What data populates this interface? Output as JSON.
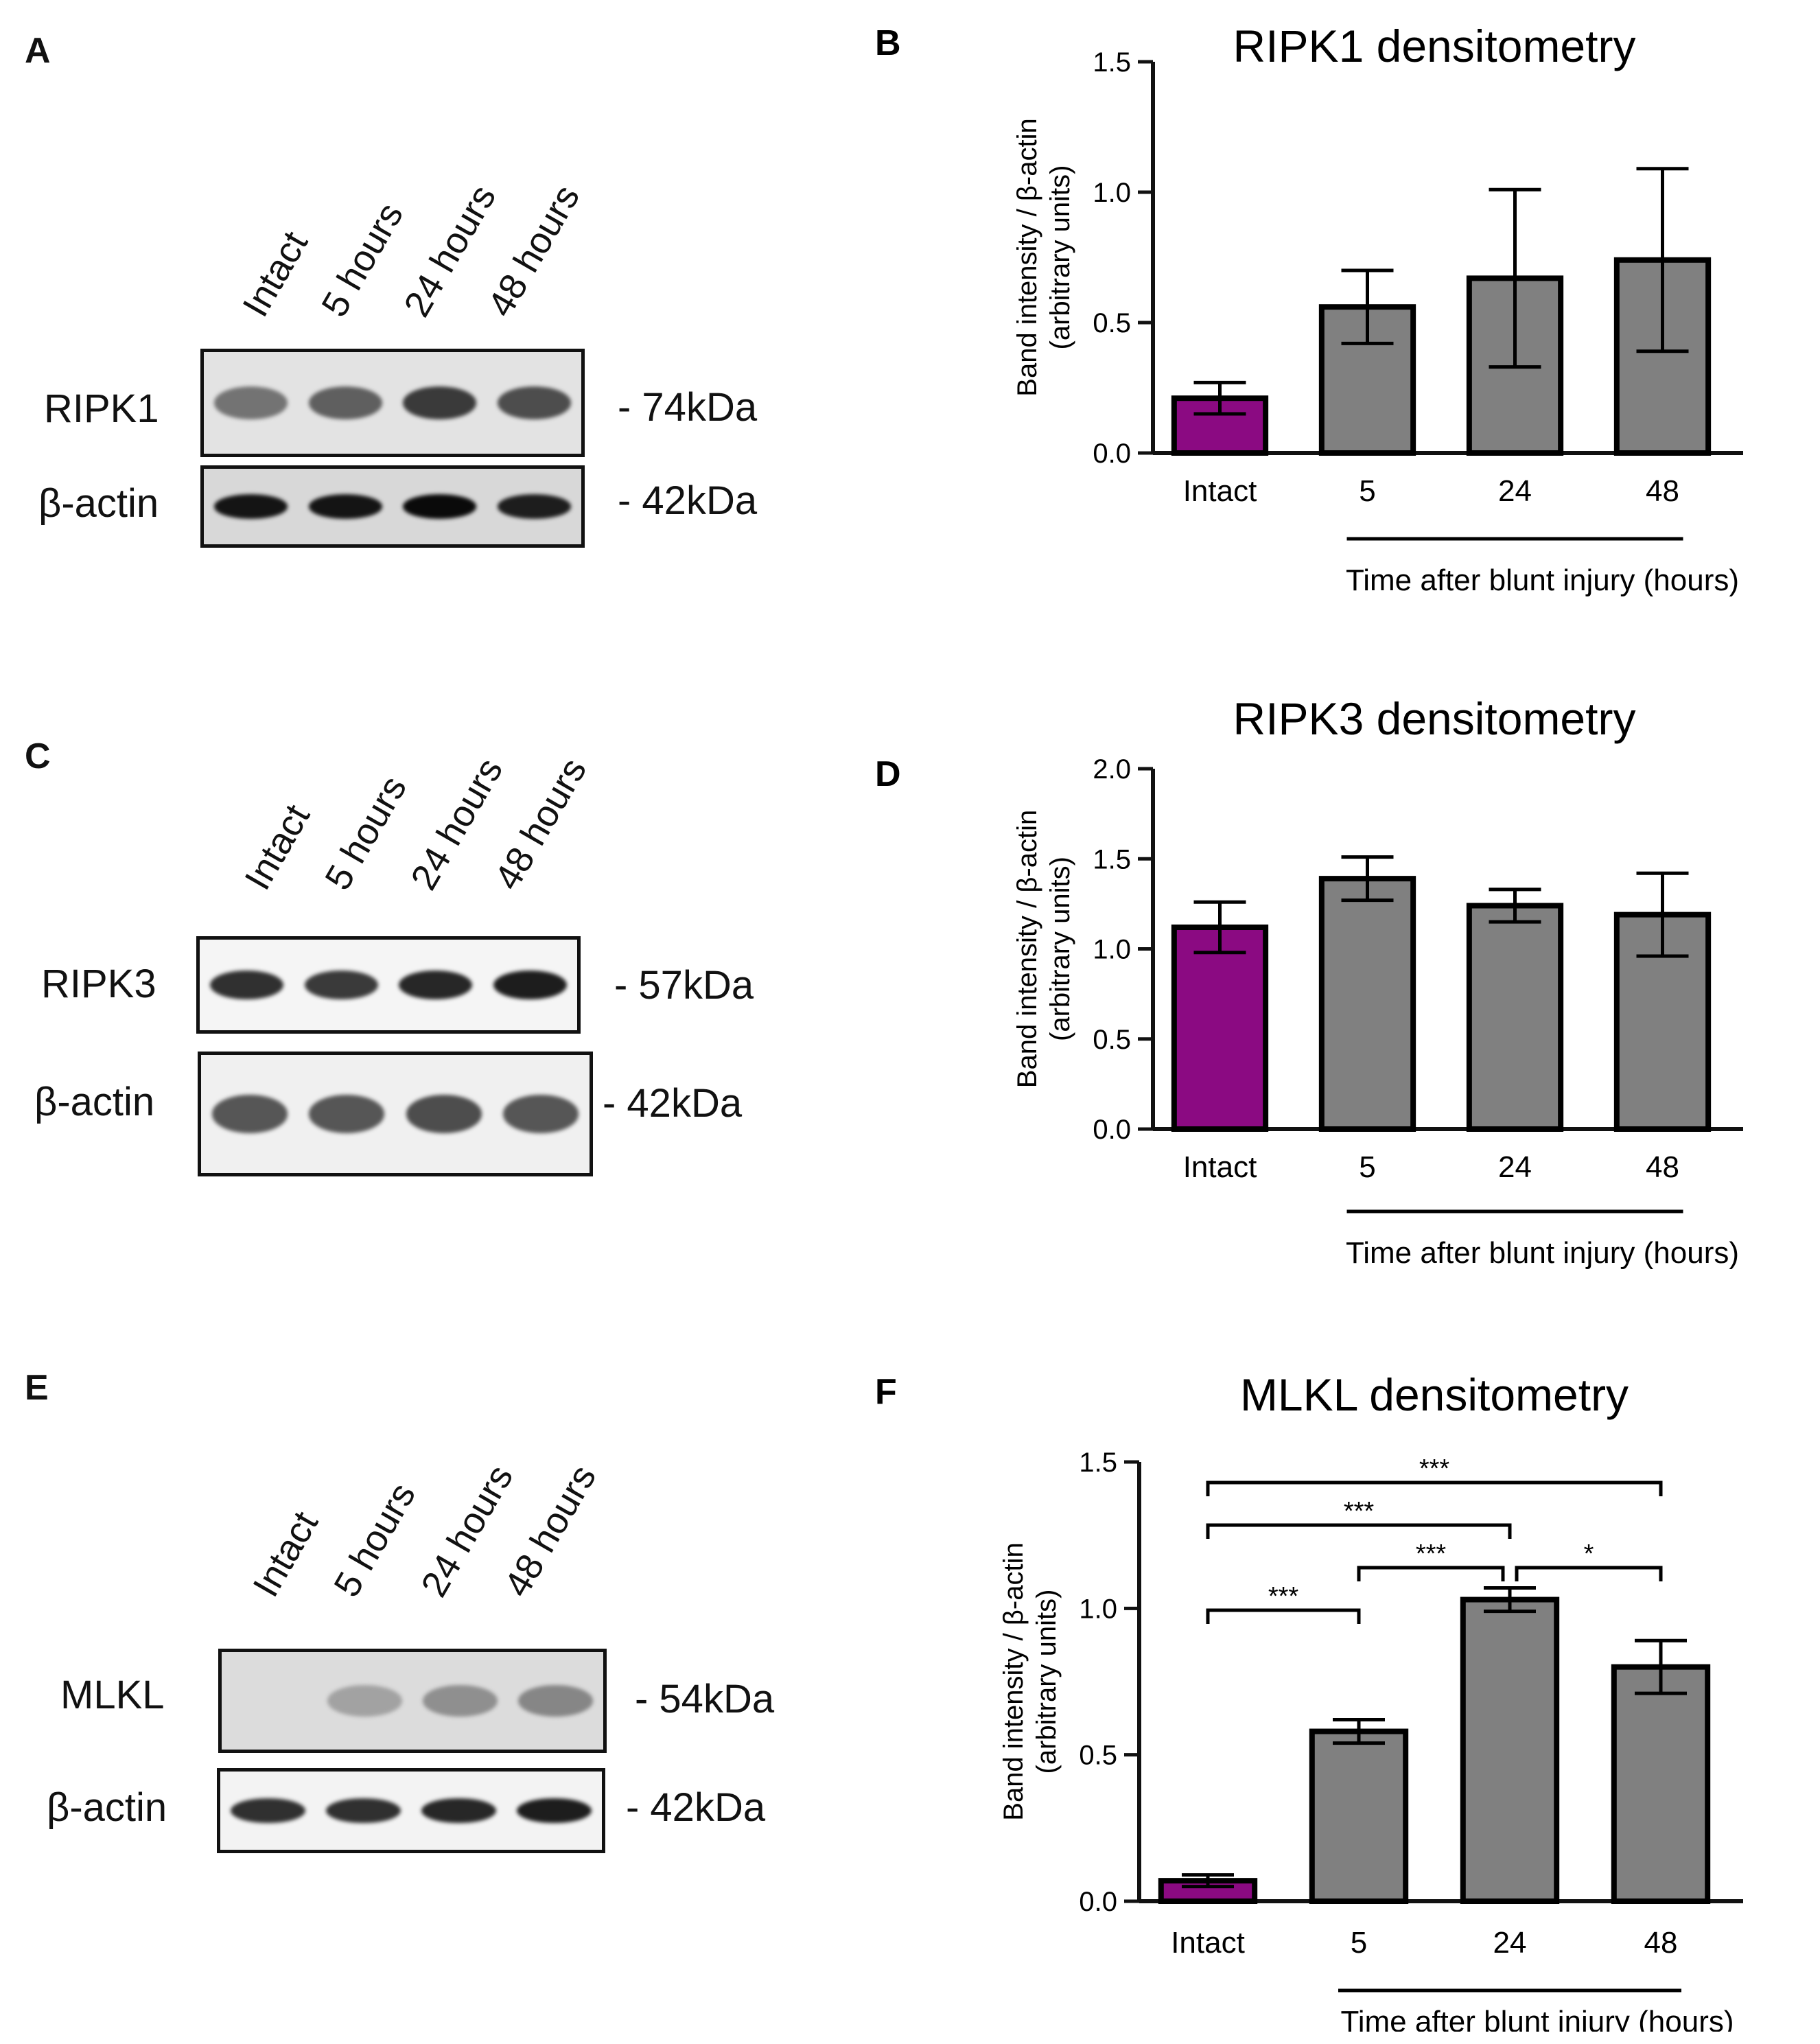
{
  "blots": [
    {
      "id": "A",
      "letter": "A",
      "lanes": [
        "Intact",
        "5 hours",
        "24 hours",
        "48 hours"
      ],
      "rows": [
        {
          "label": "RIPK1",
          "kda": "- 74kDa",
          "intensity": [
            0.45,
            0.55,
            0.75,
            0.65
          ],
          "tone": "#e3e3e3"
        },
        {
          "label": "β-actin",
          "kda": "- 42kDa",
          "intensity": [
            0.95,
            0.95,
            1.0,
            0.9
          ],
          "tone": "#d8d8d8"
        }
      ]
    },
    {
      "id": "C",
      "letter": "C",
      "lanes": [
        "Intact",
        "5 hours",
        "24 hours",
        "48 hours"
      ],
      "rows": [
        {
          "label": "RIPK3",
          "kda": "- 57kDa",
          "intensity": [
            0.8,
            0.75,
            0.85,
            0.9
          ],
          "tone": "#f5f5f5"
        },
        {
          "label": "β-actin",
          "kda": "- 42kDa",
          "intensity": [
            0.6,
            0.6,
            0.65,
            0.6
          ],
          "tone": "#f0f0f0"
        }
      ]
    },
    {
      "id": "E",
      "letter": "E",
      "lanes": [
        "Intact",
        "5 hours",
        "24 hours",
        "48 hours"
      ],
      "rows": [
        {
          "label": "MLKL",
          "kda": "- 54kDa",
          "intensity": [
            0.0,
            0.2,
            0.3,
            0.35
          ],
          "tone": "#dcdcdc"
        },
        {
          "label": "β-actin",
          "kda": "- 42kDa",
          "intensity": [
            0.8,
            0.8,
            0.85,
            0.9
          ],
          "tone": "#f3f3f3"
        }
      ]
    }
  ],
  "chart_data": [
    {
      "id": "B",
      "letter": "B",
      "type": "bar",
      "title": "RIPK1 densitometry",
      "ylabel_line1": "Band intensity / β-actin",
      "ylabel_line2": "(arbitrary units)",
      "xlabel": "Time after blunt injury (hours)",
      "categories": [
        "Intact",
        "5",
        "24",
        "48"
      ],
      "values": [
        0.21,
        0.56,
        0.67,
        0.74
      ],
      "errors": [
        0.06,
        0.14,
        0.34,
        0.35
      ],
      "colors": [
        "#8b0a82",
        "#808080",
        "#808080",
        "#808080"
      ],
      "ylim": [
        0,
        1.5
      ],
      "yticks": [
        "0.0",
        "0.5",
        "1.0",
        "1.5"
      ],
      "significance": []
    },
    {
      "id": "D",
      "letter": "D",
      "type": "bar",
      "title": "RIPK3 densitometry",
      "ylabel_line1": "Band intensity / β-actin",
      "ylabel_line2": "(arbitrary units)",
      "xlabel": "Time after blunt injury (hours)",
      "categories": [
        "Intact",
        "5",
        "24",
        "48"
      ],
      "values": [
        1.12,
        1.39,
        1.24,
        1.19
      ],
      "errors": [
        0.14,
        0.12,
        0.09,
        0.23
      ],
      "colors": [
        "#8b0a82",
        "#808080",
        "#808080",
        "#808080"
      ],
      "ylim": [
        0,
        2.0
      ],
      "yticks": [
        "0.0",
        "0.5",
        "1.0",
        "1.5",
        "2.0"
      ],
      "significance": []
    },
    {
      "id": "F",
      "letter": "F",
      "type": "bar",
      "title": "MLKL densitometry",
      "ylabel_line1": "Band intensity / β-actin",
      "ylabel_line2": "(arbitrary units)",
      "xlabel": "Time after blunt injury (hours)",
      "categories": [
        "Intact",
        "5",
        "24",
        "48"
      ],
      "values": [
        0.07,
        0.58,
        1.03,
        0.8
      ],
      "errors": [
        0.02,
        0.04,
        0.04,
        0.09
      ],
      "colors": [
        "#8b0a82",
        "#808080",
        "#808080",
        "#808080"
      ],
      "ylim": [
        0,
        1.5
      ],
      "yticks": [
        "0.0",
        "0.5",
        "1.0",
        "1.5"
      ],
      "significance": [
        {
          "from": 0,
          "to": 3,
          "label": "***"
        },
        {
          "from": 0,
          "to": 2,
          "label": "***"
        },
        {
          "from": 1,
          "to": 2,
          "label": "***"
        },
        {
          "from": 2,
          "to": 3,
          "label": "*"
        },
        {
          "from": 0,
          "to": 1,
          "label": "***"
        }
      ]
    }
  ]
}
